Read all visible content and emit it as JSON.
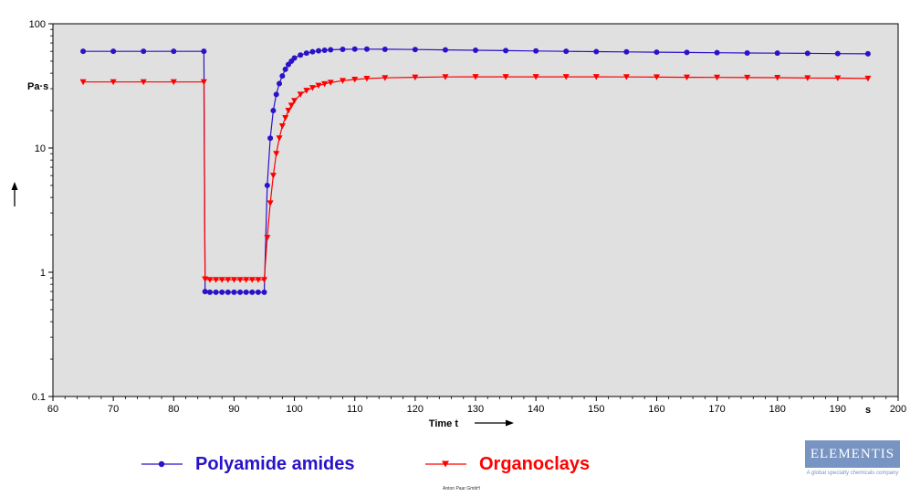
{
  "chart_data": {
    "type": "line",
    "xlabel": "Time t",
    "x_unit": "s",
    "y_unit": "Pa·s",
    "xlim": [
      60,
      200
    ],
    "ylim": [
      0.1,
      100
    ],
    "yscale": "log",
    "x_ticks": [
      60,
      70,
      80,
      90,
      100,
      110,
      120,
      130,
      140,
      150,
      160,
      170,
      180,
      190,
      200
    ],
    "y_ticks": [
      {
        "value": 0.1,
        "label": "0.1"
      },
      {
        "value": 1,
        "label": "1"
      },
      {
        "value": 10,
        "label": "10"
      },
      {
        "value": 100,
        "label": "100"
      }
    ],
    "grid": false,
    "plot_background": "#e0e0e0",
    "legend_position": "bottom",
    "series": [
      {
        "name": "Polyamide amides",
        "color": "#2a12c8",
        "marker": "circle",
        "points": [
          [
            65,
            60
          ],
          [
            70,
            60
          ],
          [
            75,
            60
          ],
          [
            80,
            60
          ],
          [
            85,
            60
          ],
          [
            85.2,
            0.7
          ],
          [
            86,
            0.69
          ],
          [
            87,
            0.69
          ],
          [
            88,
            0.69
          ],
          [
            89,
            0.69
          ],
          [
            90,
            0.69
          ],
          [
            91,
            0.69
          ],
          [
            92,
            0.69
          ],
          [
            93,
            0.69
          ],
          [
            94,
            0.69
          ],
          [
            95,
            0.69
          ],
          [
            95.5,
            5
          ],
          [
            96,
            12
          ],
          [
            96.5,
            20
          ],
          [
            97,
            27
          ],
          [
            97.5,
            33
          ],
          [
            98,
            38
          ],
          [
            98.5,
            43
          ],
          [
            99,
            47
          ],
          [
            99.5,
            50
          ],
          [
            100,
            53
          ],
          [
            101,
            56
          ],
          [
            102,
            58
          ],
          [
            103,
            59.5
          ],
          [
            104,
            60.5
          ],
          [
            105,
            61.2
          ],
          [
            106,
            61.7
          ],
          [
            108,
            62.2
          ],
          [
            110,
            62.5
          ],
          [
            112,
            62.5
          ],
          [
            115,
            62.3
          ],
          [
            120,
            62
          ],
          [
            125,
            61.6
          ],
          [
            130,
            61.2
          ],
          [
            135,
            60.8
          ],
          [
            140,
            60.4
          ],
          [
            145,
            60
          ],
          [
            150,
            59.7
          ],
          [
            155,
            59.4
          ],
          [
            160,
            59.1
          ],
          [
            165,
            58.8
          ],
          [
            170,
            58.5
          ],
          [
            175,
            58.2
          ],
          [
            180,
            58
          ],
          [
            185,
            57.8
          ],
          [
            190,
            57.5
          ],
          [
            195,
            57.3
          ]
        ]
      },
      {
        "name": "Organoclays",
        "color": "#ff0000",
        "marker": "triangle-down",
        "points": [
          [
            65,
            34
          ],
          [
            70,
            34
          ],
          [
            75,
            34
          ],
          [
            80,
            34
          ],
          [
            85,
            34
          ],
          [
            85.2,
            0.88
          ],
          [
            86,
            0.87
          ],
          [
            87,
            0.87
          ],
          [
            88,
            0.87
          ],
          [
            89,
            0.87
          ],
          [
            90,
            0.87
          ],
          [
            91,
            0.87
          ],
          [
            92,
            0.87
          ],
          [
            93,
            0.87
          ],
          [
            94,
            0.87
          ],
          [
            95,
            0.87
          ],
          [
            95.5,
            1.9
          ],
          [
            96,
            3.6
          ],
          [
            96.5,
            6
          ],
          [
            97,
            9
          ],
          [
            97.5,
            12
          ],
          [
            98,
            15
          ],
          [
            98.5,
            17.5
          ],
          [
            99,
            20
          ],
          [
            99.5,
            22
          ],
          [
            100,
            24
          ],
          [
            101,
            27
          ],
          [
            102,
            29
          ],
          [
            103,
            30.5
          ],
          [
            104,
            31.8
          ],
          [
            105,
            32.8
          ],
          [
            106,
            33.6
          ],
          [
            108,
            34.8
          ],
          [
            110,
            35.6
          ],
          [
            112,
            36.2
          ],
          [
            115,
            36.7
          ],
          [
            120,
            37.1
          ],
          [
            125,
            37.3
          ],
          [
            130,
            37.4
          ],
          [
            135,
            37.4
          ],
          [
            140,
            37.4
          ],
          [
            145,
            37.4
          ],
          [
            150,
            37.4
          ],
          [
            155,
            37.3
          ],
          [
            160,
            37.2
          ],
          [
            165,
            37.1
          ],
          [
            170,
            37
          ],
          [
            175,
            36.9
          ],
          [
            180,
            36.8
          ],
          [
            185,
            36.6
          ],
          [
            190,
            36.5
          ],
          [
            195,
            36.3
          ]
        ]
      }
    ]
  },
  "legend": {
    "polyamide_label": "Polyamide amides",
    "organoclays_label": "Organoclays"
  },
  "footer_note": "Anton Paar GmbH",
  "logo": {
    "name": "ELEMENTIS",
    "tagline": "A global specialty chemicals company"
  }
}
